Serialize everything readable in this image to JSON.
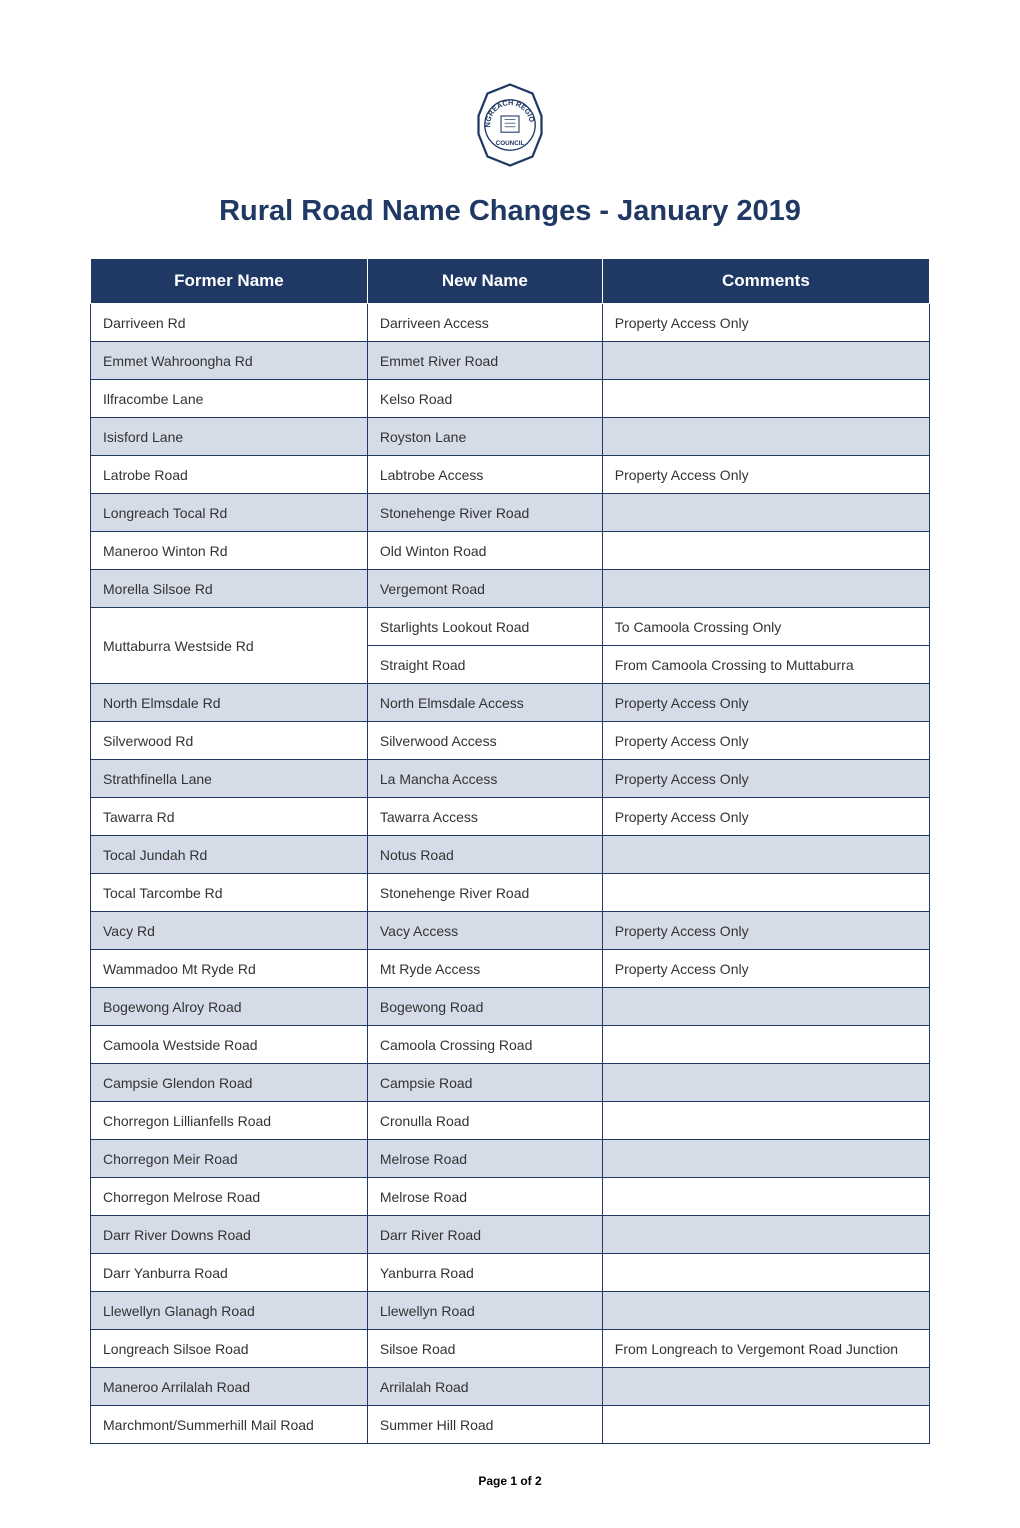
{
  "colors": {
    "primary": "#1f3864",
    "shaded_row": "#d5dce8",
    "white": "#ffffff",
    "text": "#333333",
    "footer_text": "#000000"
  },
  "typography": {
    "title_fontsize": 29,
    "header_fontsize": 17,
    "cell_fontsize": 14,
    "footer_fontsize": 12
  },
  "logo": {
    "text_top": "LONGREACH REGIONAL",
    "text_bottom": "COUNCIL"
  },
  "title": "Rural Road Name Changes - January 2019",
  "table": {
    "columns": [
      "Former Name",
      "New Name",
      "Comments"
    ],
    "column_widths": [
      "33%",
      "28%",
      "39%"
    ],
    "rows": [
      {
        "former": "Darriveen Rd",
        "new": "Darriveen Access",
        "comments": "Property Access Only",
        "shaded": false
      },
      {
        "former": "Emmet Wahroongha Rd",
        "new": "Emmet River Road",
        "comments": "",
        "shaded": true
      },
      {
        "former": "Ilfracombe Lane",
        "new": "Kelso Road",
        "comments": "",
        "shaded": false
      },
      {
        "former": "Isisford Lane",
        "new": "Royston Lane",
        "comments": "",
        "shaded": true
      },
      {
        "former": "Latrobe Road",
        "new": "Labtrobe Access",
        "comments": "Property Access Only",
        "shaded": false
      },
      {
        "former": "Longreach Tocal Rd",
        "new": "Stonehenge River Road",
        "comments": "",
        "shaded": true
      },
      {
        "former": "Maneroo Winton Rd",
        "new": "Old Winton Road",
        "comments": "",
        "shaded": false
      },
      {
        "former": "Morella Silsoe Rd",
        "new": "Vergemont Road",
        "comments": "",
        "shaded": true
      },
      {
        "former": "Muttaburra Westside Rd",
        "new": "Starlights Lookout Road",
        "comments": "To Camoola Crossing Only",
        "shaded": false,
        "merge_former": 2
      },
      {
        "former": "",
        "new": "Straight Road",
        "comments": "From Camoola Crossing to Muttaburra",
        "shaded": false,
        "skip_former": true
      },
      {
        "former": "North Elmsdale Rd",
        "new": "North Elmsdale Access",
        "comments": "Property Access Only",
        "shaded": true
      },
      {
        "former": "Silverwood Rd",
        "new": "Silverwood Access",
        "comments": "Property Access Only",
        "shaded": false
      },
      {
        "former": "Strathfinella Lane",
        "new": "La Mancha Access",
        "comments": "Property Access Only",
        "shaded": true
      },
      {
        "former": "Tawarra Rd",
        "new": "Tawarra Access",
        "comments": "Property Access Only",
        "shaded": false
      },
      {
        "former": "Tocal Jundah Rd",
        "new": "Notus Road",
        "comments": "",
        "shaded": true
      },
      {
        "former": "Tocal Tarcombe Rd",
        "new": "Stonehenge River Road",
        "comments": "",
        "shaded": false
      },
      {
        "former": "Vacy Rd",
        "new": "Vacy Access",
        "comments": "Property Access Only",
        "shaded": true
      },
      {
        "former": "Wammadoo Mt Ryde Rd",
        "new": "Mt Ryde Access",
        "comments": "Property Access Only",
        "shaded": false
      },
      {
        "former": "Bogewong Alroy Road",
        "new": "Bogewong Road",
        "comments": "",
        "shaded": true
      },
      {
        "former": "Camoola Westside Road",
        "new": "Camoola Crossing Road",
        "comments": "",
        "shaded": false
      },
      {
        "former": "Campsie Glendon Road",
        "new": "Campsie Road",
        "comments": "",
        "shaded": true
      },
      {
        "former": "Chorregon Lillianfells Road",
        "new": "Cronulla Road",
        "comments": "",
        "shaded": false
      },
      {
        "former": "Chorregon Meir Road",
        "new": "Melrose Road",
        "comments": "",
        "shaded": true
      },
      {
        "former": "Chorregon Melrose Road",
        "new": "Melrose Road",
        "comments": "",
        "shaded": false
      },
      {
        "former": "Darr River Downs Road",
        "new": "Darr River Road",
        "comments": "",
        "shaded": true
      },
      {
        "former": "Darr Yanburra Road",
        "new": "Yanburra Road",
        "comments": "",
        "shaded": false
      },
      {
        "former": "Llewellyn Glanagh Road",
        "new": "Llewellyn Road",
        "comments": "",
        "shaded": true
      },
      {
        "former": "Longreach Silsoe Road",
        "new": "Silsoe Road",
        "comments": "From Longreach to Vergemont Road Junction",
        "shaded": false
      },
      {
        "former": "Maneroo Arrilalah Road",
        "new": "Arrilalah Road",
        "comments": "",
        "shaded": true
      },
      {
        "former": "Marchmont/Summerhill Mail Road",
        "new": "Summer Hill Road",
        "comments": "",
        "shaded": false
      }
    ]
  },
  "footer": "Page 1 of 2"
}
